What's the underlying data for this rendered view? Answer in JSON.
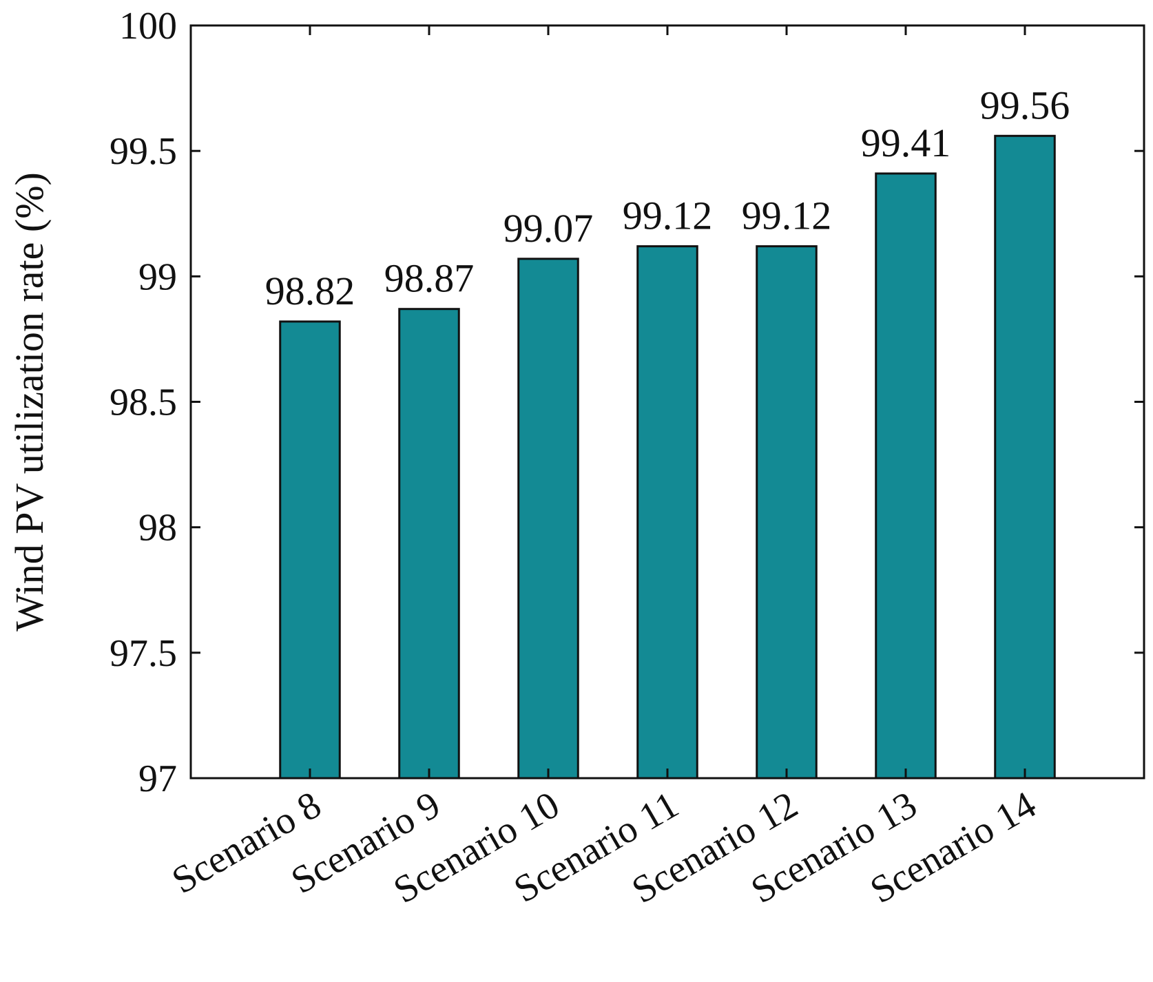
{
  "chart_data": {
    "type": "bar",
    "categories": [
      "Scenario 8",
      "Scenario 9",
      "Scenario 10",
      "Scenario 11",
      "Scenario 12",
      "Scenario 13",
      "Scenario 14"
    ],
    "values": [
      98.82,
      98.87,
      99.07,
      99.12,
      99.12,
      99.41,
      99.56
    ],
    "data_labels": [
      "98.82",
      "98.87",
      "99.07",
      "99.12",
      "99.12",
      "99.41",
      "99.56"
    ],
    "ylabel": "Wind PV utilization rate (%)",
    "ylim": [
      97,
      100
    ],
    "yticks": [
      97,
      97.5,
      98,
      98.5,
      99,
      99.5,
      100
    ],
    "ytick_labels": [
      "97",
      "97.5",
      "98",
      "98.5",
      "99",
      "99.5",
      "100"
    ],
    "bar_color": "#138a94",
    "edge_color": "#111111",
    "grid": false,
    "legend": false
  }
}
